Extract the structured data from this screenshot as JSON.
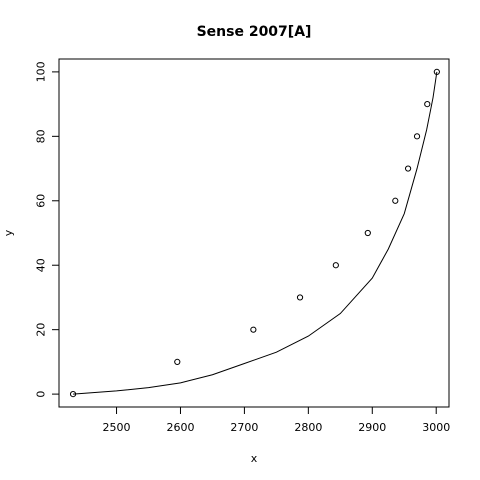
{
  "chart_data": {
    "type": "scatter",
    "title": "Sense 2007[A]",
    "xlabel": "x",
    "ylabel": "y",
    "xlim": [
      2410,
      3020
    ],
    "ylim": [
      -4,
      104
    ],
    "xticks": [
      2500,
      2600,
      2700,
      2800,
      2900,
      3000
    ],
    "yticks": [
      0,
      20,
      40,
      60,
      80,
      100
    ],
    "xtick_labels": [
      "2500",
      "2600",
      "2700",
      "2800",
      "2900",
      "3000"
    ],
    "ytick_labels": [
      "0",
      "20",
      "40",
      "60",
      "80",
      "100"
    ],
    "grid": false,
    "series": [
      {
        "kind": "points",
        "marker": "open-circle",
        "x": [
          2432,
          2595,
          2714,
          2787,
          2843,
          2893,
          2936,
          2956,
          2970,
          2986,
          3001
        ],
        "y": [
          0,
          10,
          20,
          30,
          40,
          50,
          60,
          70,
          80,
          90,
          100
        ]
      },
      {
        "kind": "line",
        "x": [
          2432,
          2500,
          2550,
          2600,
          2650,
          2700,
          2750,
          2800,
          2850,
          2900,
          2925,
          2950,
          2970,
          2985,
          2995,
          3001
        ],
        "y": [
          0,
          1,
          2,
          3.5,
          6,
          9.5,
          13,
          18,
          25,
          36,
          45,
          56,
          70,
          82,
          92,
          100
        ]
      }
    ]
  }
}
